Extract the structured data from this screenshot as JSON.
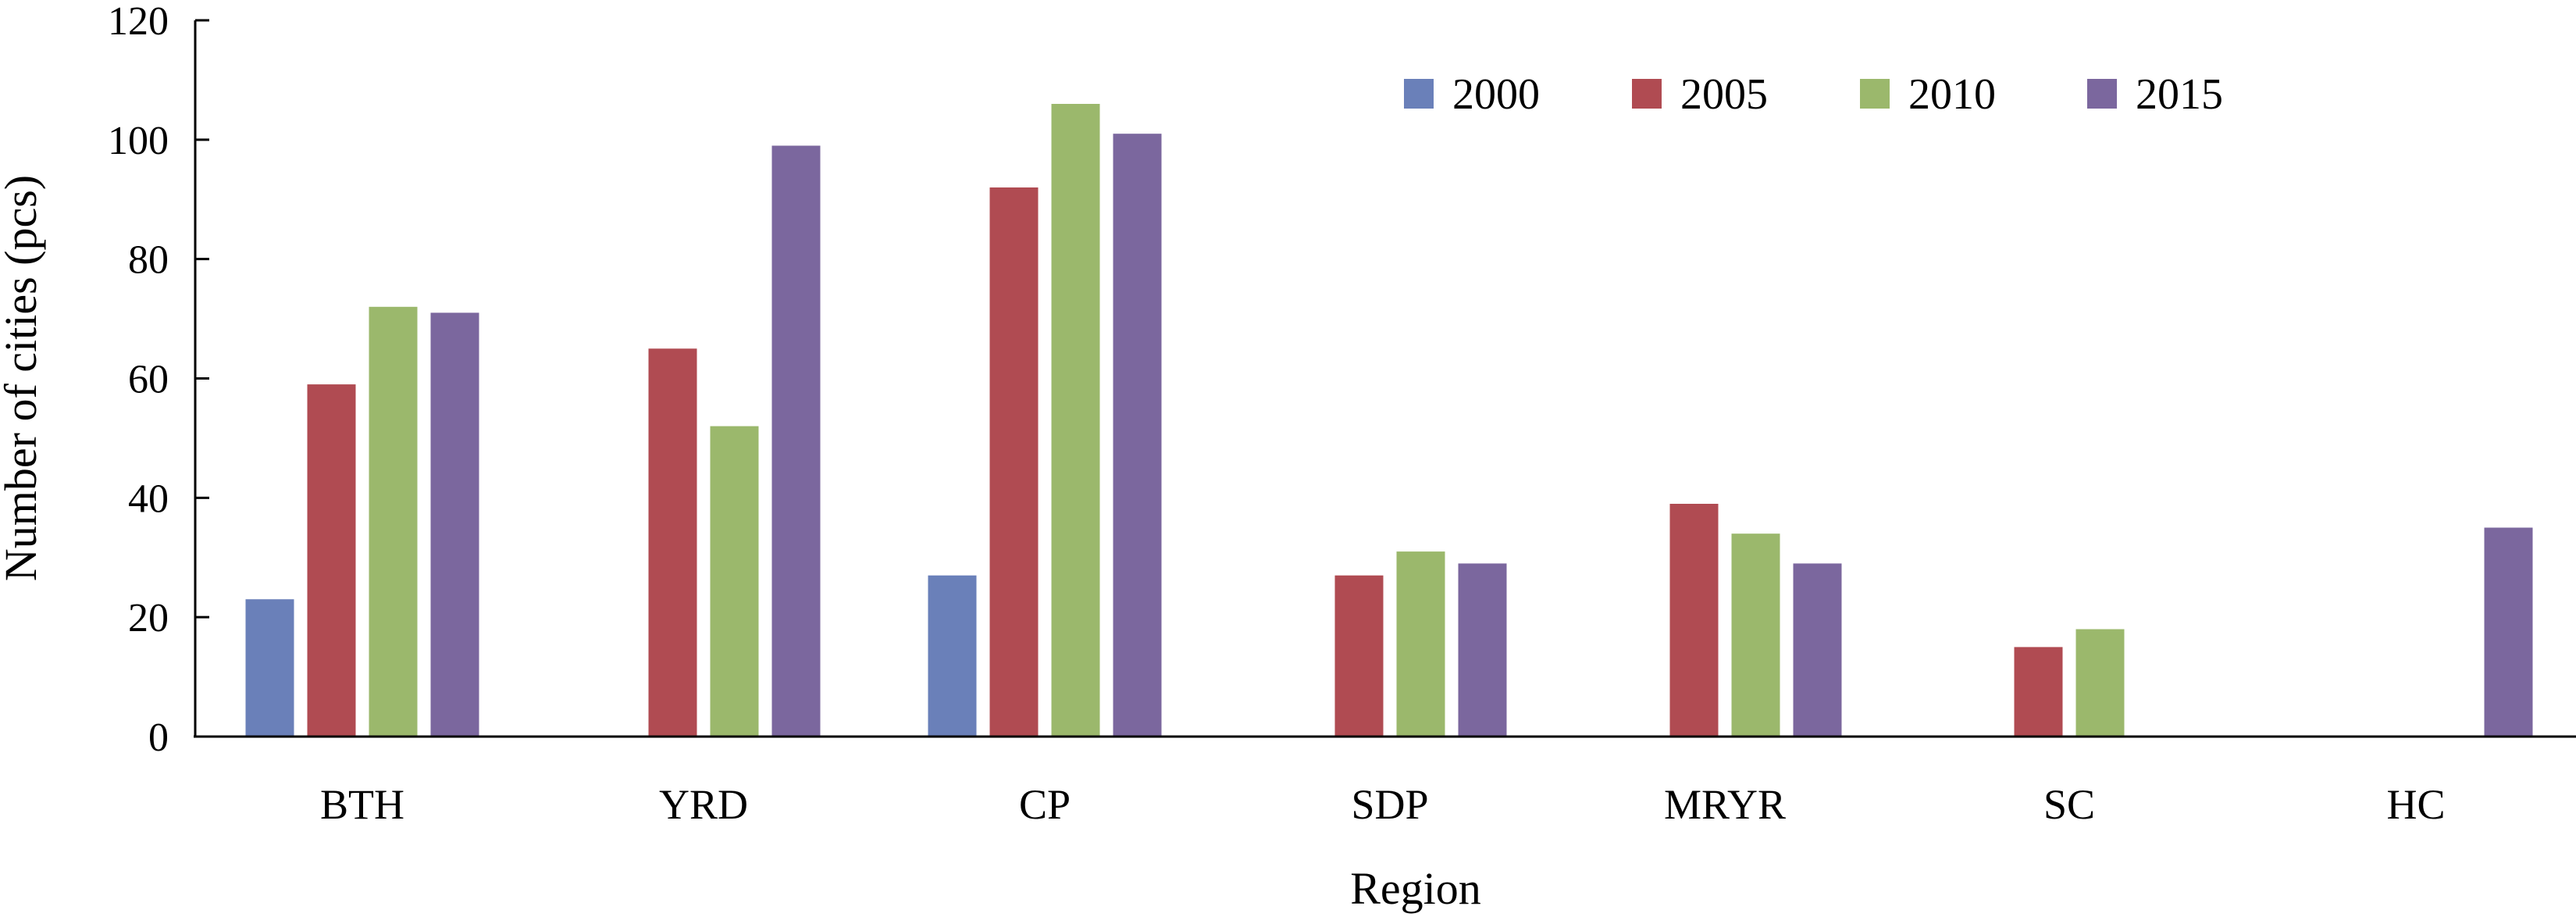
{
  "chart_data": {
    "type": "bar",
    "title": "",
    "xlabel": "Region",
    "ylabel": "Number of cities (pcs)",
    "ylim": [
      0,
      120
    ],
    "yticks": [
      "0",
      "20",
      "40",
      "60",
      "80",
      "100",
      "120"
    ],
    "categories": [
      "BTH",
      "YRD",
      "CP",
      "SDP",
      "MRYR",
      "SC",
      "HC"
    ],
    "series": [
      {
        "name": "2000",
        "color": "#6a80b9",
        "values": [
          23,
          null,
          27,
          null,
          null,
          null,
          null
        ]
      },
      {
        "name": "2005",
        "color": "#b04b52",
        "values": [
          59,
          65,
          92,
          27,
          39,
          15,
          null
        ]
      },
      {
        "name": "2010",
        "color": "#9bb86c",
        "values": [
          72,
          52,
          106,
          31,
          34,
          18,
          null
        ]
      },
      {
        "name": "2015",
        "color": "#7b679e",
        "values": [
          71,
          99,
          101,
          29,
          29,
          null,
          35
        ]
      }
    ],
    "legend": {
      "position": "top-center",
      "orientation": "horizontal"
    },
    "grid": false
  }
}
